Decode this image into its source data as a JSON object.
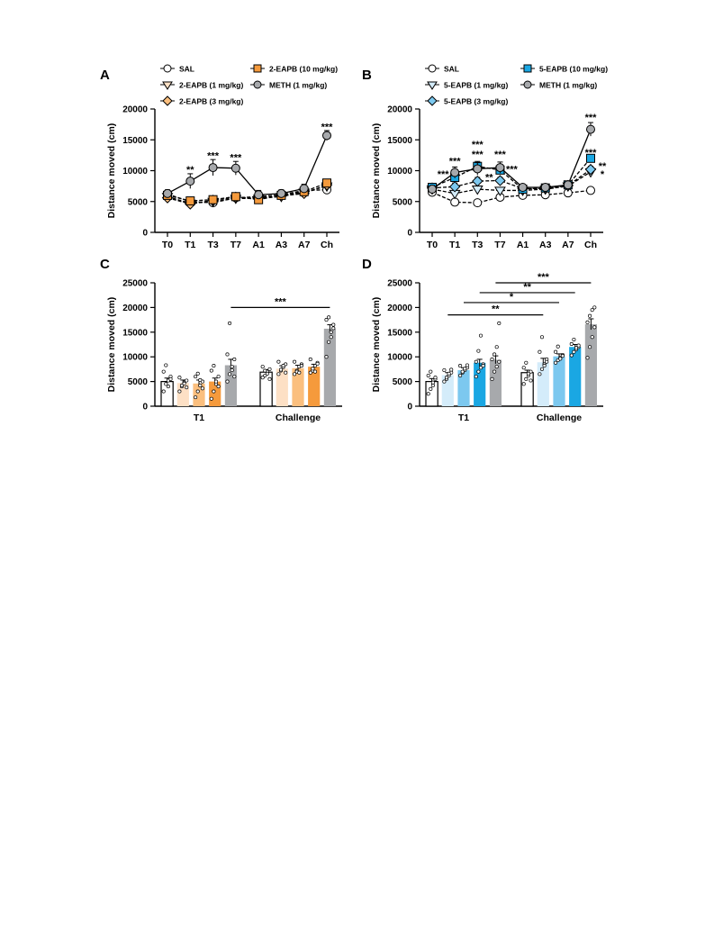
{
  "panels": [
    {
      "id": "A",
      "letter": "A",
      "chart_data": {
        "type": "line",
        "ylabel": "Distance moved (cm)",
        "ylim": [
          0,
          20000
        ],
        "yticks": [
          0,
          5000,
          10000,
          15000,
          20000
        ],
        "categories": [
          "T0",
          "T1",
          "T3",
          "T7",
          "A1",
          "A3",
          "A7",
          "Ch"
        ],
        "legend": [
          {
            "label": "SAL",
            "series": 0
          },
          {
            "label": "2-EAPB (10 mg/kg)",
            "series": 3
          },
          {
            "label": "2-EAPB (1 mg/kg)",
            "series": 1
          },
          {
            "label": "METH (1 mg/kg)",
            "series": 4
          },
          {
            "label": "2-EAPB (3 mg/kg)",
            "series": 2
          }
        ],
        "series": [
          {
            "name": "SAL",
            "marker": "circle",
            "color": "#ffffff",
            "values": [
              6200,
              5000,
              4800,
              5600,
              5800,
              6100,
              6800,
              6900
            ],
            "errors": [
              500,
              400,
              400,
              300,
              400,
              400,
              500,
              400
            ]
          },
          {
            "name": "2-EAPB (1 mg/kg)",
            "marker": "triangle-down",
            "color": "#fde0c5",
            "values": [
              5800,
              4700,
              5000,
              5500,
              5500,
              5800,
              6500,
              7500
            ],
            "errors": [
              500,
              400,
              400,
              300,
              400,
              400,
              500,
              400
            ]
          },
          {
            "name": "2-EAPB (3 mg/kg)",
            "marker": "diamond",
            "color": "#fbbf7e",
            "values": [
              5600,
              4600,
              5200,
              5700,
              5600,
              5900,
              6300,
              7700
            ],
            "errors": [
              500,
              400,
              400,
              300,
              400,
              400,
              500,
              400
            ]
          },
          {
            "name": "2-EAPB (10 mg/kg)",
            "marker": "square",
            "color": "#f59a3c",
            "values": [
              6000,
              5100,
              5300,
              5800,
              5300,
              6000,
              6600,
              8000
            ],
            "errors": [
              500,
              400,
              400,
              300,
              400,
              400,
              500,
              400
            ]
          },
          {
            "name": "METH (1 mg/kg)",
            "marker": "circle",
            "color": "#a7a9ac",
            "values": [
              6300,
              8300,
              10500,
              10400,
              6100,
              6300,
              7100,
              15700
            ],
            "errors": [
              600,
              1200,
              1300,
              1100,
              700,
              600,
              700,
              800
            ]
          }
        ],
        "annotations": [
          {
            "x": "T1",
            "y": 9600,
            "text": "**"
          },
          {
            "x": "T3",
            "y": 11900,
            "text": "***"
          },
          {
            "x": "T7",
            "y": 11600,
            "text": "***"
          },
          {
            "x": "Ch",
            "y": 16600,
            "text": "***"
          }
        ]
      }
    },
    {
      "id": "B",
      "letter": "B",
      "chart_data": {
        "type": "line",
        "ylabel": "Distance moved (cm)",
        "ylim": [
          0,
          20000
        ],
        "yticks": [
          0,
          5000,
          10000,
          15000,
          20000
        ],
        "categories": [
          "T0",
          "T1",
          "T3",
          "T7",
          "A1",
          "A3",
          "A7",
          "Ch"
        ],
        "legend": [
          {
            "label": "SAL",
            "series": 0
          },
          {
            "label": "5-EAPB (10 mg/kg)",
            "series": 3
          },
          {
            "label": "5-EAPB (1 mg/kg)",
            "series": 1
          },
          {
            "label": "METH (1 mg/kg)",
            "series": 4
          },
          {
            "label": "5-EAPB (3 mg/kg)",
            "series": 2
          }
        ],
        "series": [
          {
            "name": "SAL",
            "marker": "circle",
            "color": "#ffffff",
            "values": [
              6500,
              4900,
              4800,
              5700,
              6000,
              6100,
              6400,
              6800
            ],
            "errors": [
              500,
              500,
              400,
              300,
              400,
              400,
              400,
              400
            ]
          },
          {
            "name": "5-EAPB (1 mg/kg)",
            "marker": "triangle-down",
            "color": "#d4ecfa",
            "values": [
              7000,
              6300,
              7000,
              6800,
              6800,
              7000,
              7500,
              9800
            ],
            "errors": [
              500,
              500,
              500,
              400,
              400,
              400,
              400,
              500
            ]
          },
          {
            "name": "5-EAPB (3 mg/kg)",
            "marker": "diamond",
            "color": "#7cc8ef",
            "values": [
              7200,
              7400,
              8300,
              8400,
              7100,
              7100,
              7600,
              10200
            ],
            "errors": [
              500,
              600,
              600,
              500,
              400,
              400,
              400,
              500
            ]
          },
          {
            "name": "5-EAPB (10 mg/kg)",
            "marker": "square",
            "color": "#1aa7e3",
            "values": [
              7300,
              8900,
              10700,
              10100,
              7000,
              7200,
              7700,
              12000
            ],
            "errors": [
              600,
              700,
              800,
              700,
              500,
              500,
              500,
              500
            ]
          },
          {
            "name": "METH (1 mg/kg)",
            "marker": "circle",
            "color": "#a7a9ac",
            "values": [
              7000,
              9700,
              10300,
              10500,
              7300,
              7300,
              7700,
              16700
            ],
            "errors": [
              600,
              900,
              1000,
              900,
              500,
              500,
              500,
              1100
            ]
          }
        ],
        "annotations": [
          {
            "x": "T1",
            "y": 11000,
            "text": "***"
          },
          {
            "x": "T1",
            "y": 8900,
            "text": "***",
            "offset": -1
          },
          {
            "x": "T3",
            "y": 13700,
            "text": "***"
          },
          {
            "x": "T3",
            "y": 12100,
            "text": "***"
          },
          {
            "x": "T3",
            "y": 8400,
            "text": "**",
            "offset": 1
          },
          {
            "x": "T7",
            "y": 12100,
            "text": "***"
          },
          {
            "x": "T7",
            "y": 9700,
            "text": "***",
            "offset": 1
          },
          {
            "x": "Ch",
            "y": 18100,
            "text": "***"
          },
          {
            "x": "Ch",
            "y": 12400,
            "text": "***"
          },
          {
            "x": "Ch",
            "y": 10200,
            "text": "**",
            "offset": 1
          },
          {
            "x": "Ch",
            "y": 8900,
            "text": "*",
            "offset": 1
          }
        ]
      }
    },
    {
      "id": "C",
      "letter": "C",
      "chart_data": {
        "type": "bar",
        "ylabel": "Distance moved (cm)",
        "ylim": [
          0,
          25000
        ],
        "yticks": [
          0,
          5000,
          10000,
          15000,
          20000,
          25000
        ],
        "groups": [
          "T1",
          "Challenge"
        ],
        "series": [
          {
            "name": "SAL",
            "color": "#ffffff",
            "values": [
              5000,
              6900
            ],
            "errors": [
              700,
              500
            ]
          },
          {
            "name": "2-EAPB (1 mg/kg)",
            "color": "#fde0c5",
            "values": [
              4700,
              7600
            ],
            "errors": [
              600,
              600
            ]
          },
          {
            "name": "2-EAPB (3 mg/kg)",
            "color": "#fbbf7e",
            "values": [
              4600,
              7700
            ],
            "errors": [
              700,
              600
            ]
          },
          {
            "name": "2-EAPB (10 mg/kg)",
            "color": "#f59a3c",
            "values": [
              5000,
              8000
            ],
            "errors": [
              700,
              500
            ]
          },
          {
            "name": "METH (1 mg/kg)",
            "color": "#a7a9ac",
            "values": [
              8300,
              15700
            ],
            "errors": [
              1200,
              800
            ]
          }
        ],
        "points": [
          [
            [
              3000,
              4500,
              5200,
              6000,
              7000,
              8300,
              4000,
              5500
            ],
            [
              5800,
              6200,
              7000,
              7500,
              8000,
              7200,
              6600,
              5500
            ]
          ],
          [
            [
              3000,
              4000,
              4800,
              5200,
              5800,
              4200,
              4600,
              3800
            ],
            [
              6500,
              7200,
              7900,
              8500,
              9000,
              7400,
              8200,
              6800
            ]
          ],
          [
            [
              1800,
              3000,
              4200,
              5000,
              6000,
              6600,
              5300,
              3600
            ],
            [
              6500,
              7200,
              8000,
              8500,
              9000,
              7000,
              6800,
              8200
            ]
          ],
          [
            [
              1500,
              3000,
              4500,
              6000,
              7200,
              8200,
              5000,
              4000
            ],
            [
              6800,
              7200,
              8200,
              8800,
              9500,
              7600,
              7000,
              8600
            ]
          ],
          [
            [
              5000,
              6500,
              8000,
              9500,
              10500,
              16800,
              7300,
              6000
            ],
            [
              10000,
              13000,
              15000,
              16500,
              17500,
              18000,
              14000,
              15800
            ]
          ]
        ],
        "brackets": [
          {
            "from_group": 0,
            "from_series": 4,
            "to_group": 1,
            "to_series": 4,
            "y": 20000,
            "text": "***"
          }
        ]
      }
    },
    {
      "id": "D",
      "letter": "D",
      "chart_data": {
        "type": "bar",
        "ylabel": "Distance moved (cm)",
        "ylim": [
          0,
          25000
        ],
        "yticks": [
          0,
          5000,
          10000,
          15000,
          20000,
          25000
        ],
        "groups": [
          "T1",
          "Challenge"
        ],
        "series": [
          {
            "name": "SAL",
            "color": "#ffffff",
            "values": [
              5000,
              6800
            ],
            "errors": [
              600,
              500
            ]
          },
          {
            "name": "5-EAPB (1 mg/kg)",
            "color": "#d4ecfa",
            "values": [
              6300,
              8900
            ],
            "errors": [
              500,
              800
            ]
          },
          {
            "name": "5-EAPB (3 mg/kg)",
            "color": "#7cc8ef",
            "values": [
              7300,
              10100
            ],
            "errors": [
              500,
              500
            ]
          },
          {
            "name": "5-EAPB (10 mg/kg)",
            "color": "#1aa7e3",
            "values": [
              8800,
              12000
            ],
            "errors": [
              700,
              500
            ]
          },
          {
            "name": "METH (1 mg/kg)",
            "color": "#a7a9ac",
            "values": [
              9400,
              16600
            ],
            "errors": [
              800,
              1100
            ]
          }
        ],
        "points": [
          [
            [
              2500,
              3500,
              4800,
              5500,
              6200,
              7000,
              4200,
              5800
            ],
            [
              4500,
              5500,
              6200,
              7000,
              7800,
              8800,
              6600,
              5200
            ]
          ],
          [
            [
              5000,
              5500,
              6200,
              6800,
              7300,
              5800,
              6600,
              7400
            ],
            [
              6500,
              7500,
              8500,
              9500,
              11000,
              14000,
              8200,
              9000
            ]
          ],
          [
            [
              6200,
              6800,
              7300,
              7800,
              8200,
              7000,
              7600,
              8300
            ],
            [
              8800,
              9300,
              9800,
              10400,
              11000,
              12100,
              9600,
              10200
            ]
          ],
          [
            [
              6000,
              7000,
              7800,
              8500,
              9000,
              11200,
              14300,
              8200
            ],
            [
              10300,
              11000,
              11500,
              12000,
              12600,
              13500,
              11800,
              12300
            ]
          ],
          [
            [
              5500,
              7000,
              8000,
              9000,
              9500,
              10500,
              12000,
              16800
            ],
            [
              9800,
              12000,
              14000,
              16000,
              17000,
              18300,
              19500,
              20000
            ]
          ]
        ],
        "brackets": [
          {
            "from_group": 0,
            "from_series": 1,
            "to_group": 1,
            "to_series": 1,
            "y": 18500,
            "text": "**"
          },
          {
            "from_group": 0,
            "from_series": 2,
            "to_group": 1,
            "to_series": 2,
            "y": 21000,
            "text": "*"
          },
          {
            "from_group": 0,
            "from_series": 3,
            "to_group": 1,
            "to_series": 3,
            "y": 23000,
            "text": "**"
          },
          {
            "from_group": 0,
            "from_series": 4,
            "to_group": 1,
            "to_series": 4,
            "y": 25000,
            "text": "***"
          }
        ]
      }
    }
  ]
}
